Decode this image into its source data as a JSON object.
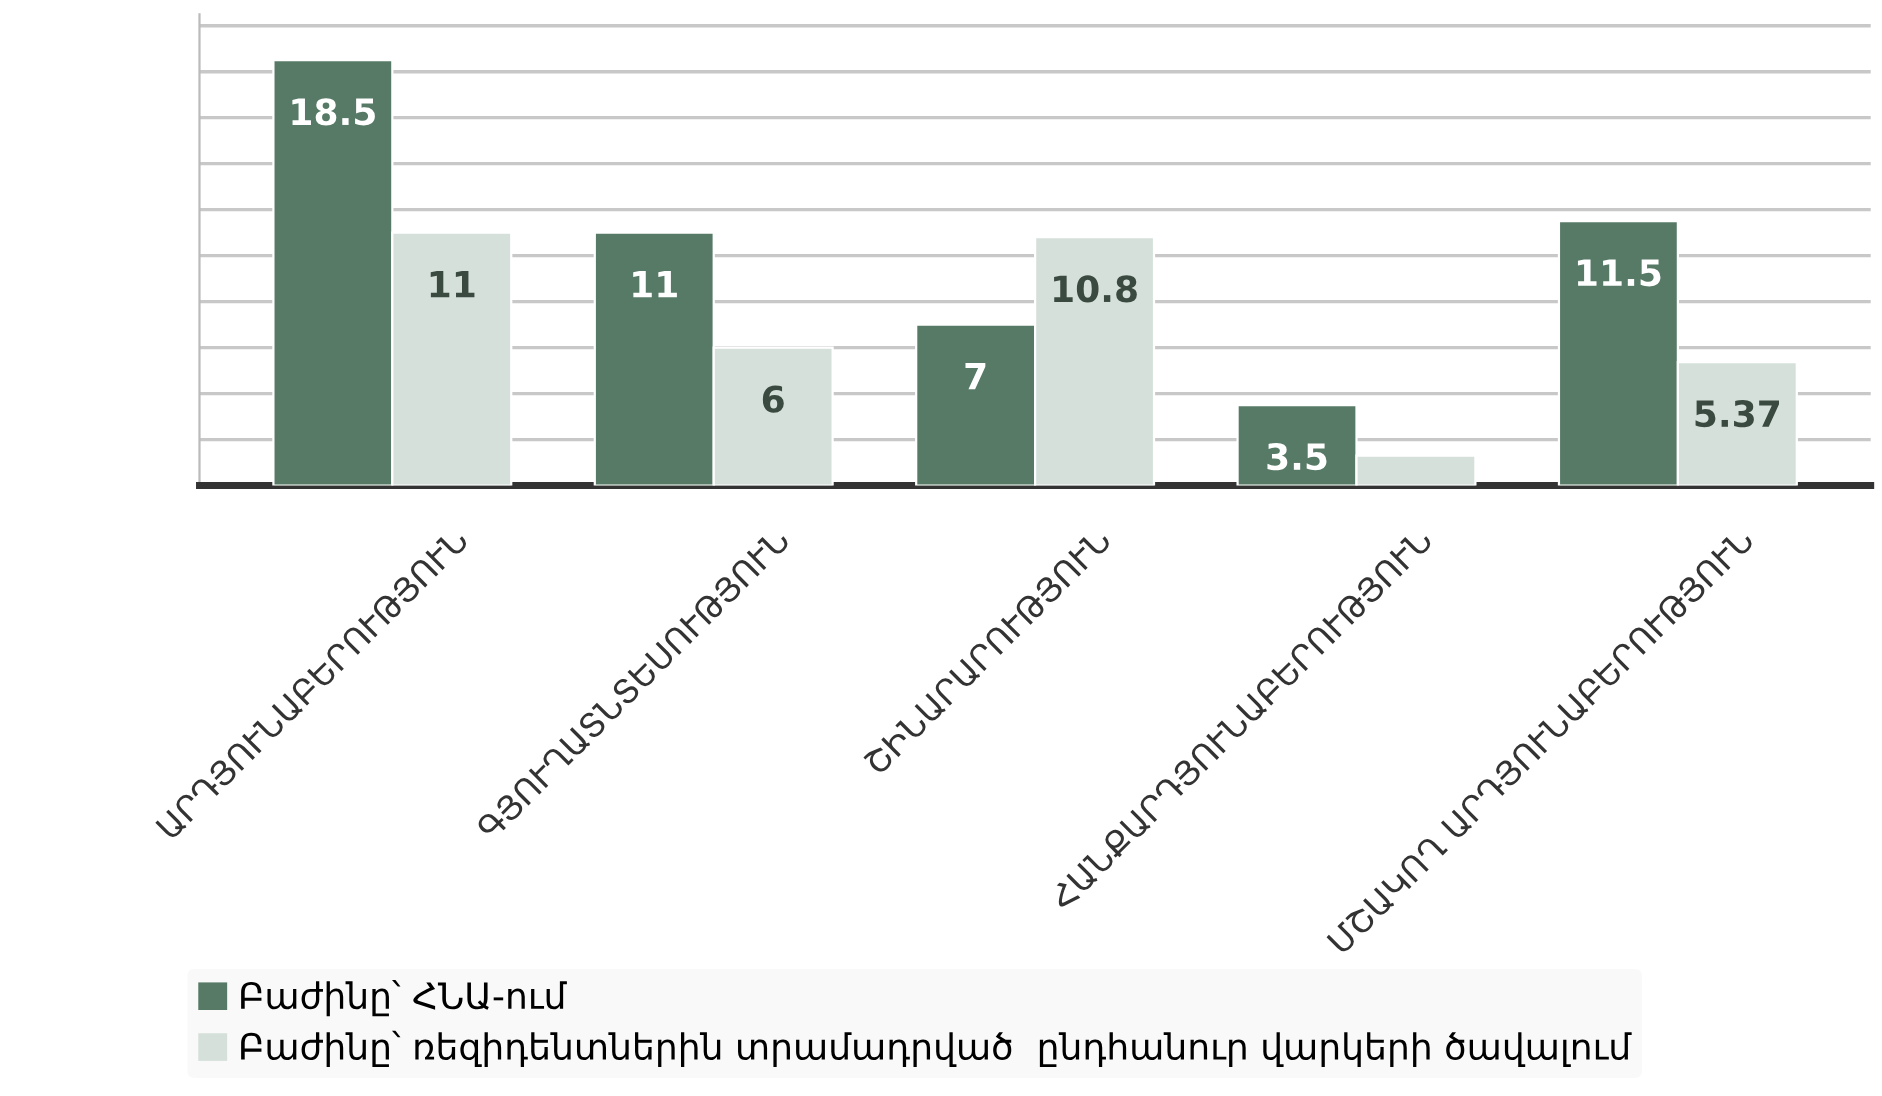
{
  "chart_data": {
    "type": "bar",
    "categories": [
      "ԱՐԴՅՈՒՆԱԲԵՐՈՒԹՅՈՒՆ",
      "ԳՅՈՒՂԱՏՆՏԵՍՈՒԹՅՈՒՆ",
      "ՇԻՆԱՐԱՐՈՒԹՅՈՒՆ",
      "ՀԱՆՔԱՐԴՅՈՒՆԱԲԵՐՈՒԹՅՈՒՆ",
      "ՄՇԱԿՈՂ ԱՐԴՅՈՒՆԱԲԵՐՈՒԹՅՈՒՆ"
    ],
    "series": [
      {
        "name": "Բաժինը՝ ՀՆԱ-ում",
        "color": "#577a66",
        "values": [
          18.5,
          11,
          7,
          3.5,
          11.5
        ],
        "value_labels": [
          "18.5",
          "11",
          "7",
          "3.5",
          "11.5"
        ]
      },
      {
        "name": "Բաժինը՝ ռեզիդենտներին տրամադրված  ընդհանուր վարկերի ծավալում",
        "color": "#d5e0da",
        "values": [
          11,
          6,
          10.8,
          1.3,
          5.37
        ],
        "value_labels": [
          "11",
          "6",
          "10.8",
          null,
          "5.37"
        ]
      }
    ],
    "ylim": [
      0,
      20.5
    ],
    "yticks": [
      {
        "value": 0,
        "label": null
      },
      {
        "value": 2,
        "label": null
      },
      {
        "value": 4,
        "label": null
      },
      {
        "value": 6,
        "label": null
      },
      {
        "value": 8,
        "label": null
      },
      {
        "value": 10,
        "label": null
      },
      {
        "value": 12,
        "label": null
      },
      {
        "value": 14,
        "label": null
      },
      {
        "value": 16,
        "label": null
      },
      {
        "value": 18,
        "label": null
      },
      {
        "value": 20,
        "label": null
      }
    ],
    "grid": "y",
    "tick_labels": "x",
    "legend": "bottom left"
  }
}
